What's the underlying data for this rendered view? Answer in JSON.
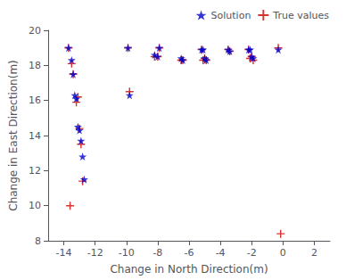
{
  "chart_data": {
    "type": "scatter",
    "xlabel": "Change in North Direction(m)",
    "ylabel": "Change in East Direction(m)",
    "xlim": [
      -15,
      3
    ],
    "ylim": [
      8,
      20
    ],
    "xticks": [
      -14,
      -12,
      -10,
      -8,
      -6,
      -4,
      -2,
      0,
      2
    ],
    "yticks": [
      8,
      10,
      12,
      14,
      16,
      18,
      20
    ],
    "series": [
      {
        "name": "Solution",
        "color": "#0000cc",
        "marker": "star",
        "x": [
          -13.7,
          -13.5,
          -13.4,
          -13.3,
          -13.2,
          -13.1,
          -13.0,
          -12.9,
          -12.8,
          -12.7,
          -9.9,
          -9.8,
          -8.2,
          -8.0,
          -7.9,
          -6.5,
          -6.4,
          -5.2,
          -5.1,
          -5.0,
          -4.9,
          -3.5,
          -3.4,
          -2.2,
          -2.1,
          -2.0,
          -1.9,
          -0.3
        ],
        "values": [
          19.0,
          18.3,
          17.5,
          16.3,
          16.1,
          14.5,
          14.3,
          13.7,
          12.8,
          11.5,
          19.0,
          16.3,
          18.6,
          18.5,
          19.0,
          18.4,
          18.3,
          18.9,
          18.9,
          18.4,
          18.3,
          18.9,
          18.8,
          18.9,
          18.9,
          18.5,
          18.4,
          18.9
        ]
      },
      {
        "name": "True values",
        "color": "#cc0000",
        "marker": "plus",
        "x": [
          -13.7,
          -13.5,
          -13.4,
          -13.2,
          -13.1,
          -13.0,
          -12.9,
          -12.8,
          -9.9,
          -9.8,
          -8.2,
          -8.0,
          -7.9,
          -6.5,
          -6.4,
          -5.2,
          -5.1,
          -5.0,
          -4.9,
          -3.5,
          -3.4,
          -2.2,
          -2.1,
          -2.0,
          -1.9,
          -0.3,
          -13.6,
          -0.15
        ],
        "values": [
          19.0,
          18.1,
          17.5,
          15.9,
          16.2,
          14.4,
          13.5,
          11.4,
          19.0,
          16.5,
          18.5,
          18.5,
          19.0,
          18.3,
          18.3,
          18.9,
          18.3,
          18.4,
          18.3,
          18.9,
          18.8,
          18.9,
          18.4,
          18.5,
          18.3,
          19.0,
          10.0,
          8.4
        ]
      }
    ],
    "grid": false,
    "legend": "upper right"
  }
}
